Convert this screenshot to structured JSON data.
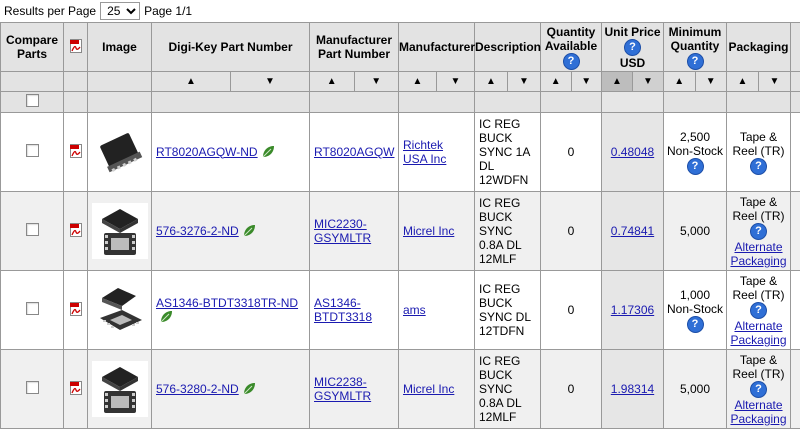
{
  "pager": {
    "results_label": "Results per Page",
    "per_page_value": "25",
    "page_label": "Page 1/1"
  },
  "headers": {
    "compare": "Compare Parts",
    "image": "Image",
    "digikey_pn": "Digi-Key Part Number",
    "mfr_pn": "Manufacturer Part Number",
    "manufacturer": "Manufacturer",
    "description": "Description",
    "qty_available": "Quantity Available",
    "unit_price": "Unit Price",
    "unit_price_currency": "USD",
    "min_qty": "Minimum Quantity",
    "packaging": "Packaging",
    "help_icon": "?"
  },
  "sort_glyphs": {
    "up": "▲",
    "down": "▼"
  },
  "rows": [
    {
      "digikey_pn": "RT8020AGQW-ND",
      "mfr_pn": "RT8020AGQW",
      "manufacturer": "Richtek USA Inc",
      "description": "IC REG BUCK SYNC 1A DL 12WDFN",
      "qty": "0",
      "price": "0.48048",
      "min_qty": "2,500",
      "min_note": "Non-Stock",
      "packaging": "Tape & Reel (TR)",
      "alt_pack": ""
    },
    {
      "digikey_pn": "576-3276-2-ND",
      "mfr_pn": "MIC2230-GSYMLTR",
      "manufacturer": "Micrel Inc",
      "description": "IC REG BUCK SYNC 0.8A DL 12MLF",
      "qty": "0",
      "price": "0.74841",
      "min_qty": "5,000",
      "min_note": "",
      "packaging": "Tape & Reel (TR)",
      "alt_pack": "Alternate Packaging"
    },
    {
      "digikey_pn": "AS1346-BTDT3318TR-ND",
      "mfr_pn": "AS1346-BTDT3318",
      "manufacturer": "ams",
      "description": "IC REG BUCK SYNC DL 12TDFN",
      "qty": "0",
      "price": "1.17306",
      "min_qty": "1,000",
      "min_note": "Non-Stock",
      "packaging": "Tape & Reel (TR)",
      "alt_pack": "Alternate Packaging"
    },
    {
      "digikey_pn": "576-3280-2-ND",
      "mfr_pn": "MIC2238-GSYMLTR",
      "manufacturer": "Micrel Inc",
      "description": "IC REG BUCK SYNC 0.8A DL 12MLF",
      "qty": "0",
      "price": "1.98314",
      "min_qty": "5,000",
      "min_note": "",
      "packaging": "Tape & Reel (TR)",
      "alt_pack": "Alternate Packaging"
    }
  ]
}
